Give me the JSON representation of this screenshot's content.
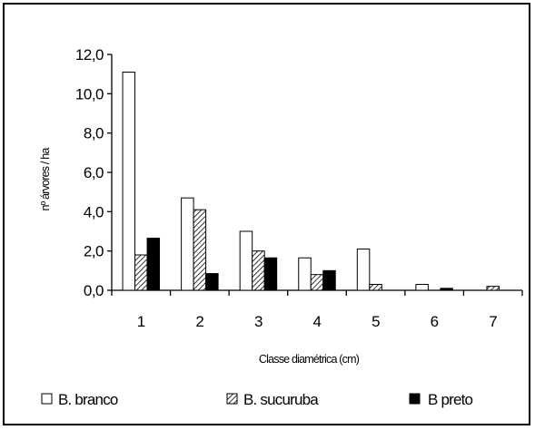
{
  "chart_data": {
    "type": "bar",
    "title": "",
    "xlabel": "Classe diamétrica (cm)",
    "ylabel": "nº árvores / ha",
    "categories": [
      "1",
      "2",
      "3",
      "4",
      "5",
      "6",
      "7"
    ],
    "series": [
      {
        "name": "B. branco",
        "values": [
          11.1,
          4.7,
          3.0,
          1.65,
          2.1,
          0.3,
          0.0
        ],
        "fill": "white"
      },
      {
        "name": "B. sucuruba",
        "values": [
          1.8,
          4.1,
          2.0,
          0.8,
          0.3,
          0.0,
          0.2
        ],
        "fill": "hatch"
      },
      {
        "name": "B preto",
        "values": [
          2.65,
          0.85,
          1.65,
          1.0,
          0.0,
          0.1,
          0.0
        ],
        "fill": "black"
      }
    ],
    "ylim": [
      0,
      12
    ],
    "yticks": [
      "0,0",
      "2,0",
      "4,0",
      "6,0",
      "8,0",
      "10,0",
      "12,0"
    ],
    "grid": false,
    "legend_position": "bottom"
  },
  "colors": {
    "bar_stroke": "#000000",
    "black_fill": "#000000",
    "white_fill": "#ffffff"
  }
}
